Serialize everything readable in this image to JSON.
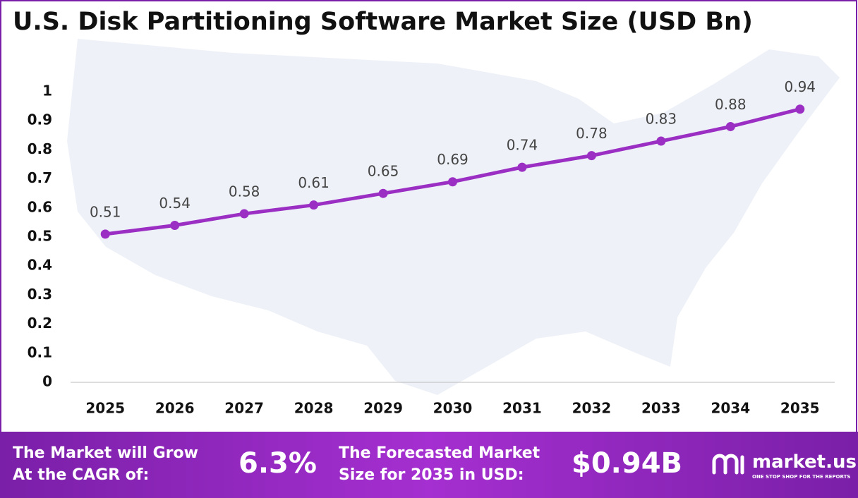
{
  "chart_data": {
    "type": "line",
    "title": "U.S. Disk Partitioning Software Market Size (USD Bn)",
    "categories": [
      "2025",
      "2026",
      "2027",
      "2028",
      "2029",
      "2030",
      "2031",
      "2032",
      "2033",
      "2034",
      "2035"
    ],
    "series": [
      {
        "color": "#9b2fc4",
        "values": [
          0.51,
          0.54,
          0.58,
          0.61,
          0.65,
          0.69,
          0.74,
          0.78,
          0.83,
          0.88,
          0.94
        ]
      }
    ],
    "ylim": [
      0,
      1
    ],
    "yticks": [
      0,
      0.1,
      0.2,
      0.3,
      0.4,
      0.5,
      0.6,
      0.7,
      0.8,
      0.9,
      1
    ],
    "grid": false,
    "data_labels": true
  },
  "footer": {
    "cagr_text": [
      "The Market will Grow",
      "At the CAGR of:"
    ],
    "cagr_value": "6.3%",
    "forecast_text": [
      "The Forecasted Market",
      "Size for 2035 in USD:"
    ],
    "forecast_value": "$0.94B",
    "brand": "market.us",
    "tagline": "ONE STOP SHOP FOR THE REPORTS"
  }
}
